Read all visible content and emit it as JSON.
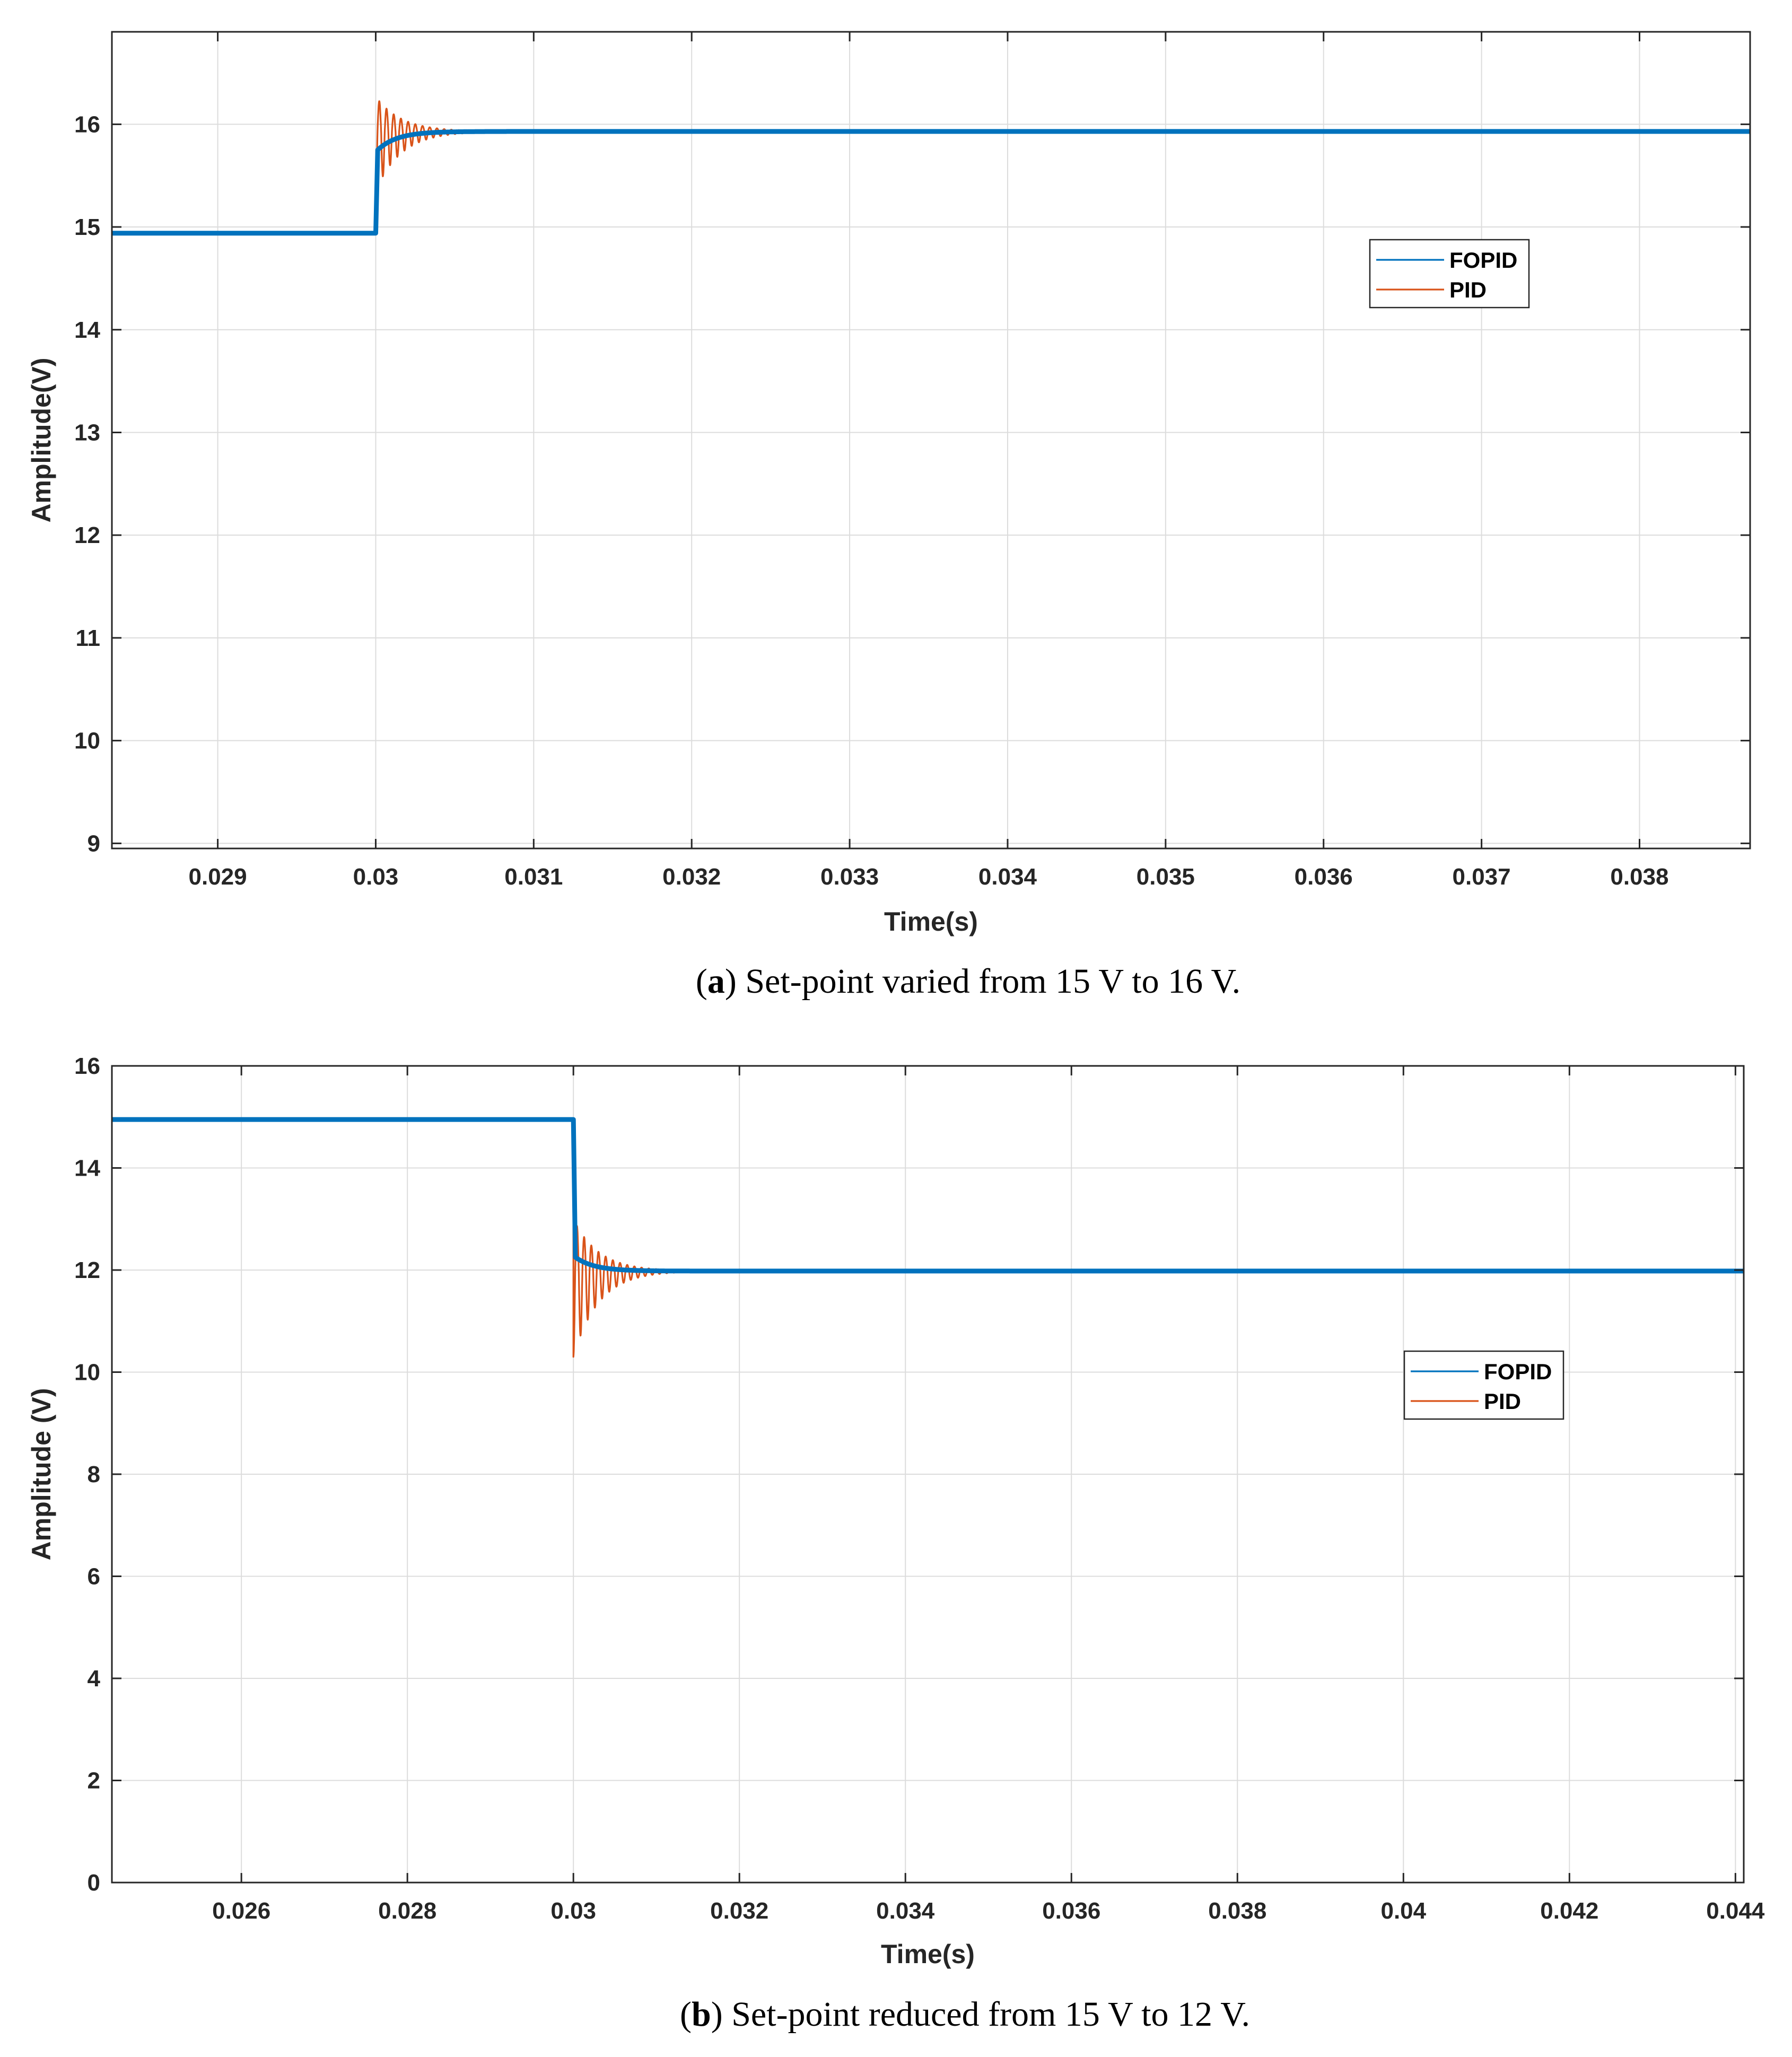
{
  "colors": {
    "fopid": "#0072BD",
    "pid": "#D95319",
    "grid": "#dcdcdc",
    "axis": "#262626"
  },
  "chart_data": [
    {
      "type": "line",
      "caption": {
        "letter": "a",
        "text": ") Set-point varied from 15 V to 16 V.",
        "open": "("
      },
      "xlabel": "Time(s)",
      "ylabel": "Amplitude(V)",
      "xlim": [
        0.02833,
        0.0387
      ],
      "ylim": [
        8.95,
        16.9
      ],
      "xticks": [
        0.029,
        0.03,
        0.031,
        0.032,
        0.033,
        0.034,
        0.035,
        0.036,
        0.037,
        0.038
      ],
      "xtick_labels": [
        "0.029",
        "0.03",
        "0.031",
        "0.032",
        "0.033",
        "0.034",
        "0.035",
        "0.036",
        "0.037",
        "0.038"
      ],
      "yticks": [
        9,
        10,
        11,
        12,
        13,
        14,
        15,
        16
      ],
      "ytick_labels": [
        "9",
        "10",
        "11",
        "12",
        "13",
        "14",
        "15",
        "16"
      ],
      "grid": true,
      "legend_position": "upper-right",
      "step_time": 0.03,
      "series": [
        {
          "name": "FOPID",
          "initial": 14.94,
          "final": 15.93,
          "overshoot": 15.75
        },
        {
          "name": "PID",
          "initial": 14.94,
          "final": 15.93,
          "peak": 16.27,
          "trough": 15.35
        }
      ]
    },
    {
      "type": "line",
      "caption": {
        "letter": "b",
        "text": ") Set-point reduced from 15 V to 12 V.",
        "open": "("
      },
      "xlabel": "Time(s)",
      "ylabel": "Amplitude (V)",
      "xlim": [
        0.02444,
        0.0441
      ],
      "ylim": [
        0,
        16
      ],
      "xticks": [
        0.026,
        0.028,
        0.03,
        0.032,
        0.034,
        0.036,
        0.038,
        0.04,
        0.042,
        0.044
      ],
      "xtick_labels": [
        "0.026",
        "0.028",
        "0.03",
        "0.032",
        "0.034",
        "0.036",
        "0.038",
        "0.04",
        "0.042",
        "0.044"
      ],
      "yticks": [
        0,
        2,
        4,
        6,
        8,
        10,
        12,
        14,
        16
      ],
      "ytick_labels": [
        "0",
        "2",
        "4",
        "6",
        "8",
        "10",
        "12",
        "14",
        "16"
      ],
      "grid": true,
      "legend_position": "upper-right",
      "step_time": 0.03,
      "series": [
        {
          "name": "FOPID",
          "initial": 14.95,
          "final": 11.98,
          "undershoot": 12.25
        },
        {
          "name": "PID",
          "initial": 14.95,
          "final": 11.98,
          "peak": 13.0,
          "trough": 10.3
        }
      ]
    }
  ]
}
